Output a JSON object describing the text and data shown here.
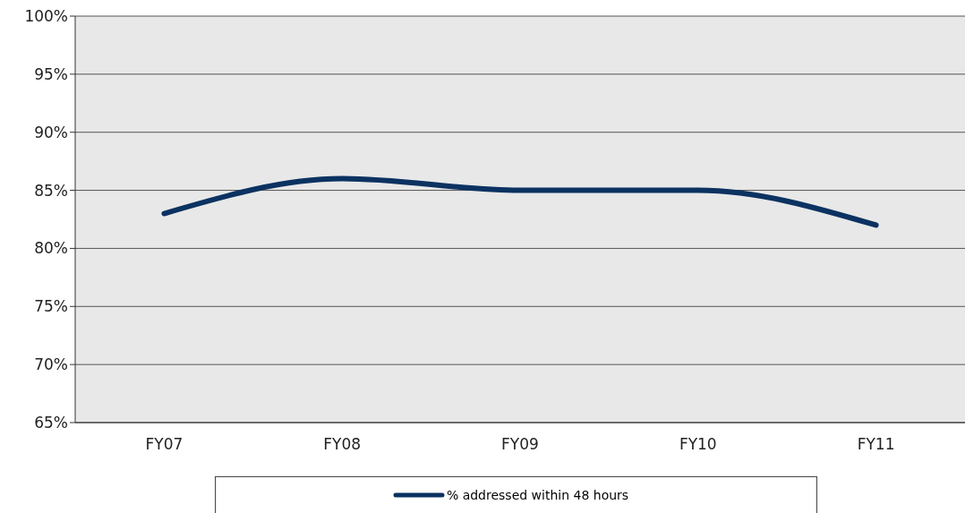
{
  "chart_data": {
    "type": "line",
    "categories": [
      "FY07",
      "FY08",
      "FY09",
      "FY10",
      "FY11"
    ],
    "series": [
      {
        "name": "% addressed within 48 hours",
        "color": "#0b3261",
        "values": [
          83,
          86,
          85,
          85,
          82
        ]
      }
    ],
    "ylim": [
      65,
      100
    ],
    "yticks": [
      {
        "value": 65,
        "label": "65%"
      },
      {
        "value": 70,
        "label": "70%"
      },
      {
        "value": 75,
        "label": "75%"
      },
      {
        "value": 80,
        "label": "80%"
      },
      {
        "value": 85,
        "label": "85%"
      },
      {
        "value": 90,
        "label": "90%"
      },
      {
        "value": 95,
        "label": "95%"
      },
      {
        "value": 100,
        "label": "100%"
      }
    ],
    "grid": "y",
    "legend": "bottom",
    "marker": "none",
    "line_style": "solid"
  }
}
